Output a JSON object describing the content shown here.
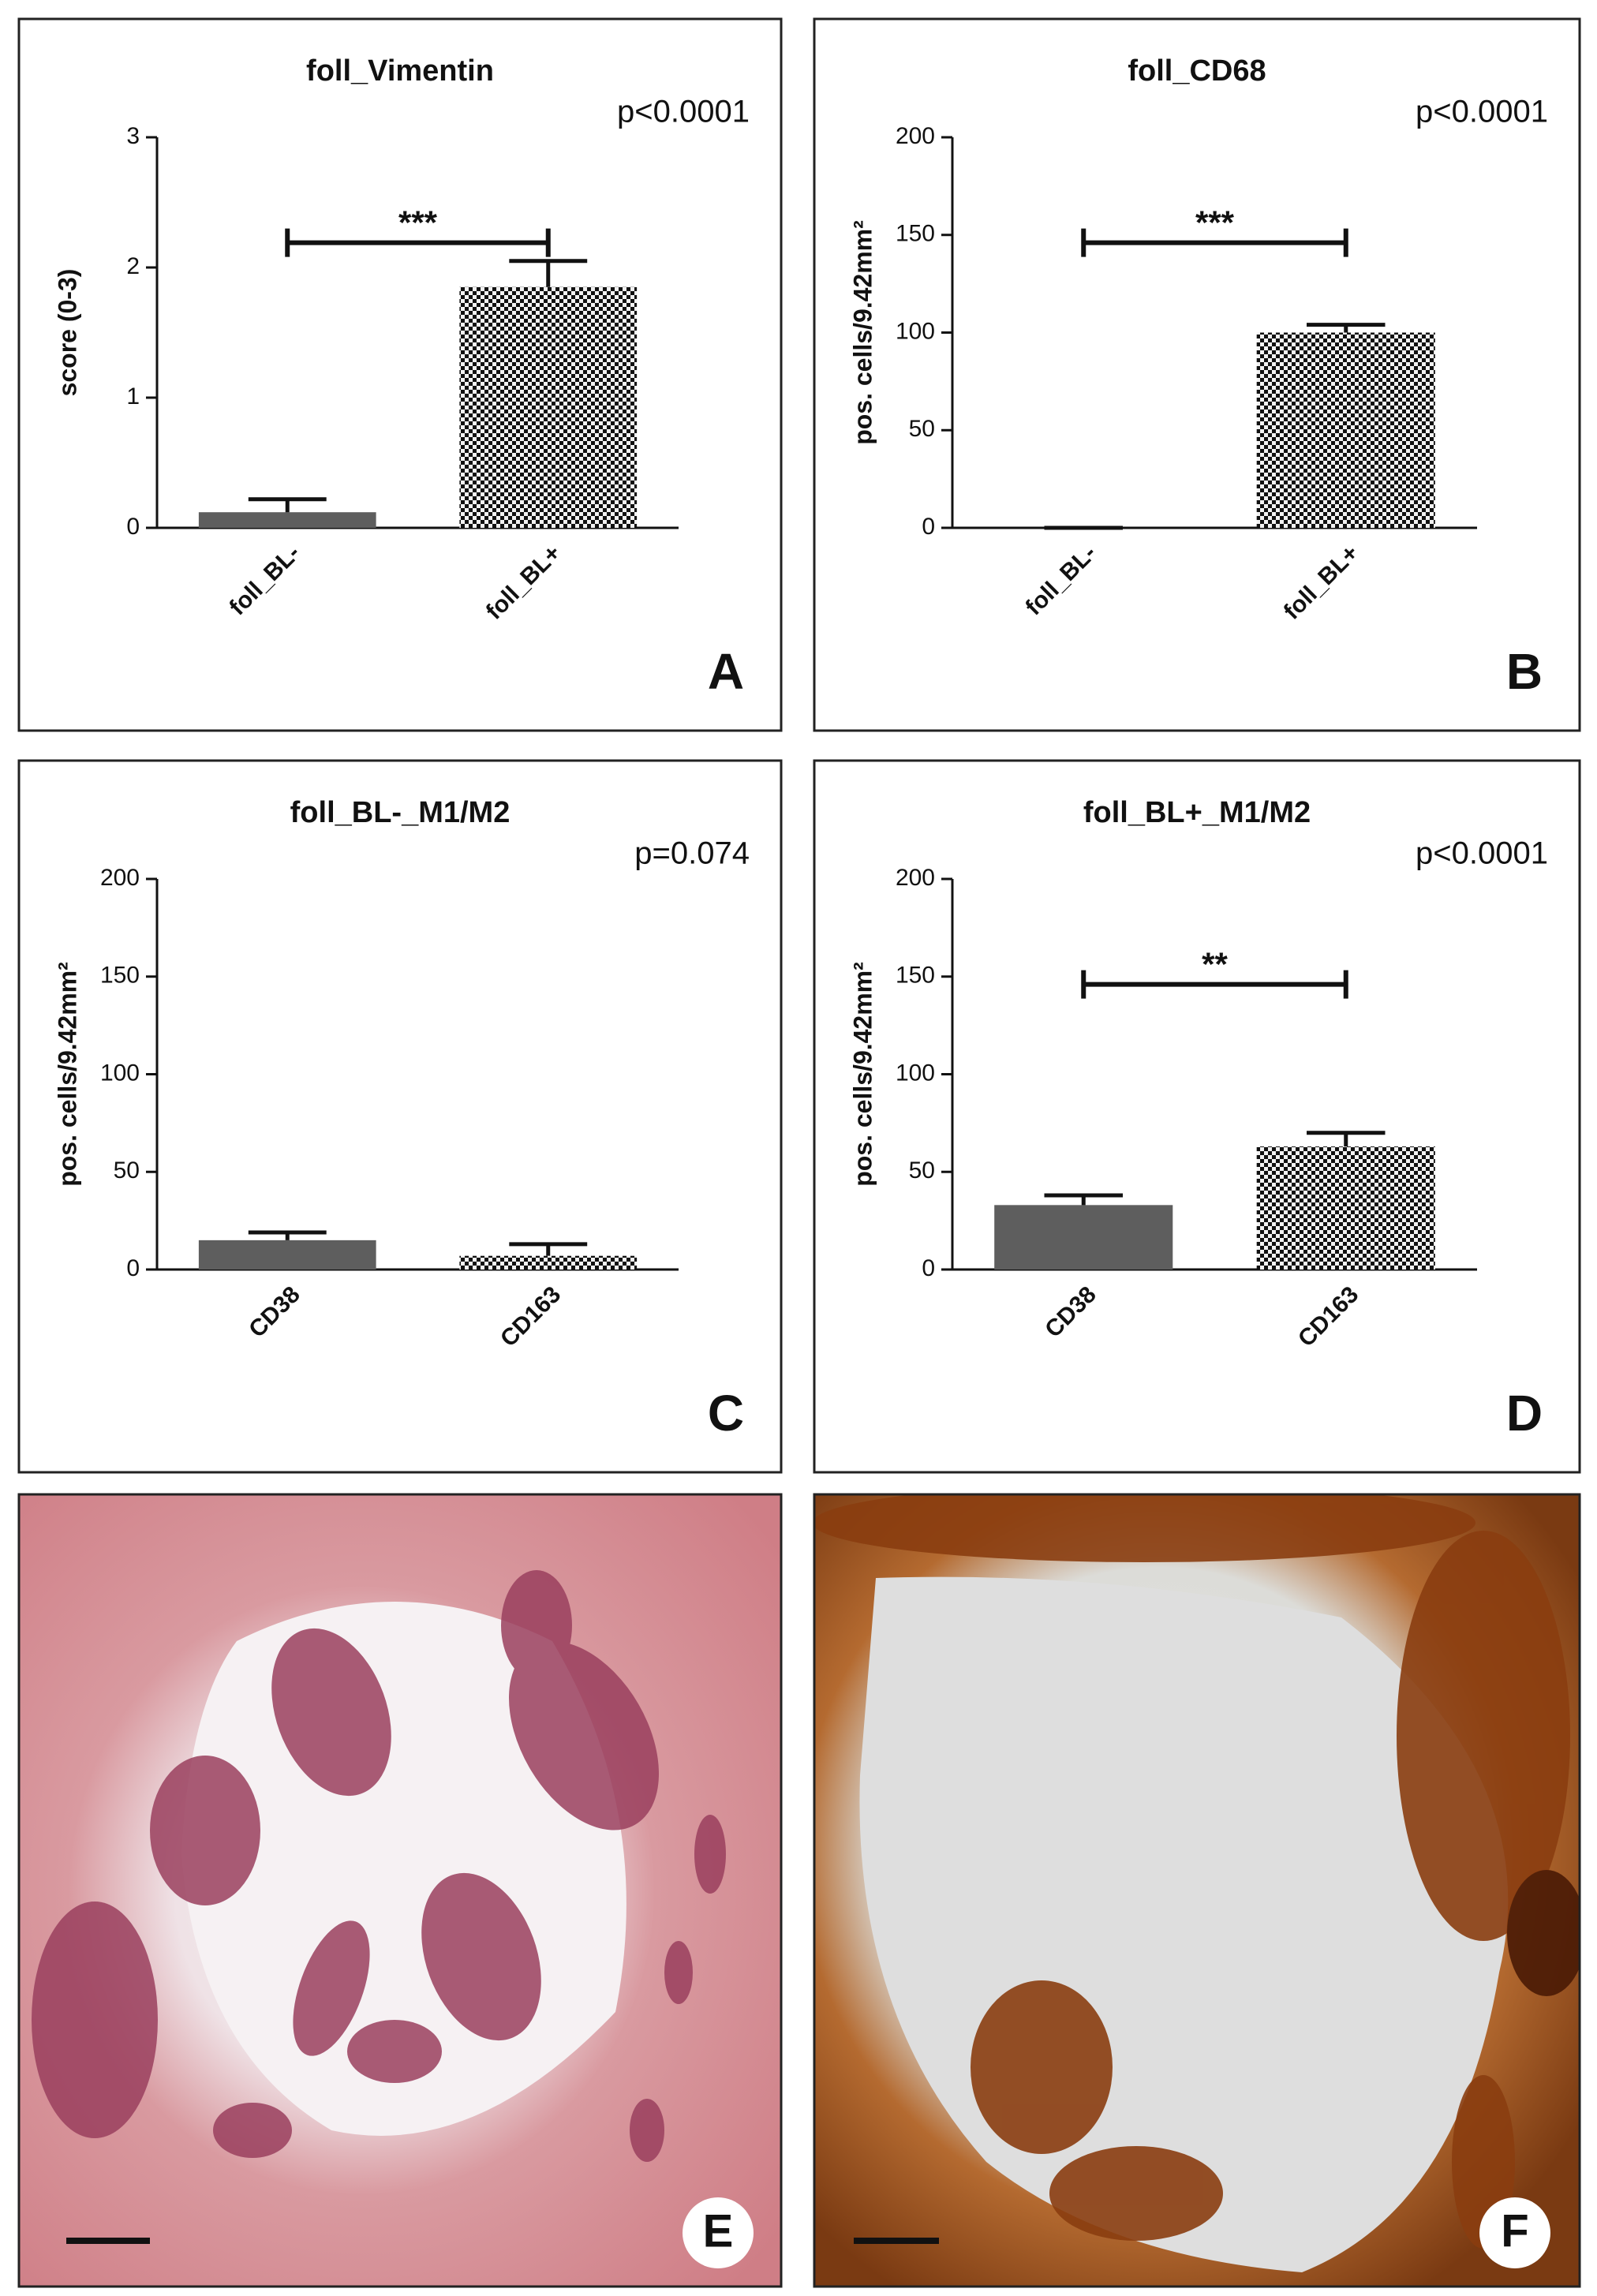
{
  "chart_data": [
    {
      "type": "bar",
      "title": "foll_Vimentin",
      "annotation": "p<0.0001",
      "panel": "A",
      "ylabel": "score (0-3)",
      "categories": [
        "foll_BL-",
        "foll_BL+"
      ],
      "values": [
        0.12,
        1.85
      ],
      "errors": [
        0.1,
        0.2
      ],
      "fills": [
        "solid",
        "checkered"
      ],
      "color": "#5e5e5e",
      "ylim": [
        0,
        3
      ],
      "yticks": [
        0,
        1,
        2,
        3
      ],
      "significance": "***"
    },
    {
      "type": "bar",
      "title": "foll_CD68",
      "annotation": "p<0.0001",
      "panel": "B",
      "ylabel": "pos. cells/9.42mm²",
      "categories": [
        "foll_BL-",
        "foll_BL+"
      ],
      "values": [
        0,
        100
      ],
      "errors": [
        0,
        4
      ],
      "fills": [
        "solid",
        "checkered"
      ],
      "color": "#5e5e5e",
      "ylim": [
        0,
        200
      ],
      "yticks": [
        0,
        50,
        100,
        150,
        200
      ],
      "significance": "***"
    },
    {
      "type": "bar",
      "title": "foll_BL-_M1/M2",
      "annotation": "p=0.074",
      "panel": "C",
      "ylabel": "pos. cells/9.42mm²",
      "categories": [
        "CD38",
        "CD163"
      ],
      "values": [
        15,
        7
      ],
      "errors": [
        4,
        6
      ],
      "fills": [
        "solid",
        "checkered"
      ],
      "color": "#5e5e5e",
      "ylim": [
        0,
        200
      ],
      "yticks": [
        0,
        50,
        100,
        150,
        200
      ]
    },
    {
      "type": "bar",
      "title": "foll_BL+_M1/M2",
      "annotation": "p<0.0001",
      "panel": "D",
      "ylabel": "pos. cells/9.42mm²",
      "categories": [
        "CD38",
        "CD163"
      ],
      "values": [
        33,
        63
      ],
      "errors": [
        5,
        7
      ],
      "fills": [
        "solid",
        "checkered"
      ],
      "color": "#5e5e5e",
      "ylim": [
        0,
        200
      ],
      "yticks": [
        0,
        50,
        100,
        150,
        200
      ],
      "significance": "**"
    }
  ],
  "images": [
    {
      "panel": "E"
    },
    {
      "panel": "F"
    }
  ]
}
